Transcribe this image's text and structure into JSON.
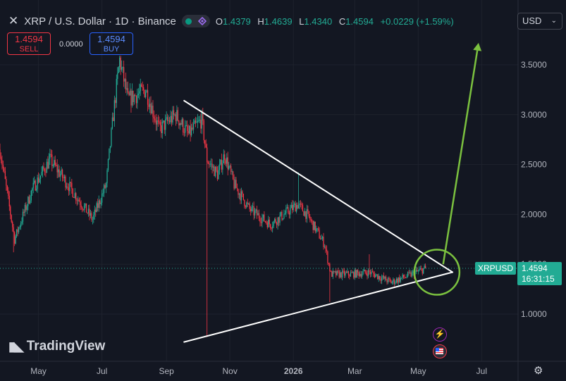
{
  "header": {
    "close_glyph": "✕",
    "title": "XRP / U.S. Dollar · 1D · Binance",
    "ohlc": [
      {
        "label": "O",
        "value": "1.4379"
      },
      {
        "label": "H",
        "value": "1.4639"
      },
      {
        "label": "L",
        "value": "1.4340"
      },
      {
        "label": "C",
        "value": "1.4594"
      }
    ],
    "change": "+0.0229 (+1.59%)"
  },
  "trade": {
    "sell_price": "1.4594",
    "sell_label": "SELL",
    "spread": "0.0000",
    "buy_price": "1.4594",
    "buy_label": "BUY"
  },
  "currency": "USD",
  "brand": "TradingView",
  "price_tag": {
    "symbol": "XRPUSD",
    "price": "1.4594",
    "countdown": "16:31:15"
  },
  "colors": {
    "up": "#22ab94",
    "down": "#f23645",
    "background": "#131722",
    "annotation": "#7bc13f",
    "trendline": "#ffffff"
  },
  "icons": [
    "close-icon",
    "visibility-icon",
    "indicator-icon",
    "chevron-down-icon",
    "gear-icon",
    "dividend-event-icon",
    "us-flag-event-icon"
  ],
  "chart_data": {
    "type": "candlestick",
    "symbol": "XRPUSD",
    "timeframe": "1D",
    "ylim": [
      0.6,
      3.95
    ],
    "y_ticks": [
      1.0,
      1.5,
      2.0,
      2.5,
      3.0,
      3.5
    ],
    "y_tick_labels": [
      "1.0000",
      "1.5000",
      "2.0000",
      "2.5000",
      "3.0000",
      "3.5000"
    ],
    "x_ticks": [
      "May",
      "Jul",
      "Sep",
      "Nov",
      "2026",
      "Mar",
      "May",
      "Jul"
    ],
    "x_range": [
      "2025-03-25",
      "2026-08-05"
    ],
    "last_price": 1.4594,
    "price_path": [
      {
        "date": "2025-03-25",
        "close": 2.65
      },
      {
        "date": "2025-04-08",
        "close": 1.75
      },
      {
        "date": "2025-04-25",
        "close": 2.25
      },
      {
        "date": "2025-05-12",
        "close": 2.55
      },
      {
        "date": "2025-06-05",
        "close": 2.2
      },
      {
        "date": "2025-06-22",
        "close": 1.95
      },
      {
        "date": "2025-07-05",
        "close": 2.3
      },
      {
        "date": "2025-07-12",
        "close": 3.0
      },
      {
        "date": "2025-07-18",
        "close": 3.55
      },
      {
        "date": "2025-07-26",
        "close": 3.15
      },
      {
        "date": "2025-08-12",
        "close": 3.25
      },
      {
        "date": "2025-08-25",
        "close": 2.85
      },
      {
        "date": "2025-09-10",
        "close": 3.0
      },
      {
        "date": "2025-09-22",
        "close": 2.8
      },
      {
        "date": "2025-10-05",
        "close": 2.95
      },
      {
        "date": "2025-10-10",
        "close": 2.55
      },
      {
        "date": "2025-10-20",
        "close": 2.4
      },
      {
        "date": "2025-10-27",
        "close": 2.6
      },
      {
        "date": "2025-11-05",
        "close": 2.3
      },
      {
        "date": "2025-11-20",
        "close": 2.05
      },
      {
        "date": "2025-12-10",
        "close": 1.9
      },
      {
        "date": "2026-01-05",
        "close": 2.1
      },
      {
        "date": "2026-01-14",
        "close": 2.0
      },
      {
        "date": "2026-01-31",
        "close": 1.7
      },
      {
        "date": "2026-02-06",
        "close": 1.4
      },
      {
        "date": "2026-02-25",
        "close": 1.4
      },
      {
        "date": "2026-03-15",
        "close": 1.42
      },
      {
        "date": "2026-04-05",
        "close": 1.32
      },
      {
        "date": "2026-04-25",
        "close": 1.4
      },
      {
        "date": "2026-05-08",
        "close": 1.4594
      }
    ],
    "spikes": [
      {
        "date": "2025-04-07",
        "low": 1.62
      },
      {
        "date": "2025-06-22",
        "low": 1.9
      },
      {
        "date": "2025-10-10",
        "low": 0.77
      },
      {
        "date": "2026-01-06",
        "high": 2.42
      },
      {
        "date": "2026-02-05",
        "low": 1.12
      },
      {
        "date": "2026-03-15",
        "high": 1.6
      }
    ],
    "annotations": {
      "upper_trendline": [
        {
          "date": "2025-09-18",
          "price": 3.14
        },
        {
          "date": "2026-06-03",
          "price": 1.42
        }
      ],
      "lower_trendline": [
        {
          "date": "2025-09-18",
          "price": 0.72
        },
        {
          "date": "2026-06-03",
          "price": 1.42
        }
      ],
      "projection_arrow": [
        {
          "date": "2026-05-25",
          "price": 1.5
        },
        {
          "date": "2026-06-28",
          "price": 3.72
        }
      ],
      "highlight_circle": {
        "date": "2026-05-19",
        "price": 1.42
      }
    }
  }
}
